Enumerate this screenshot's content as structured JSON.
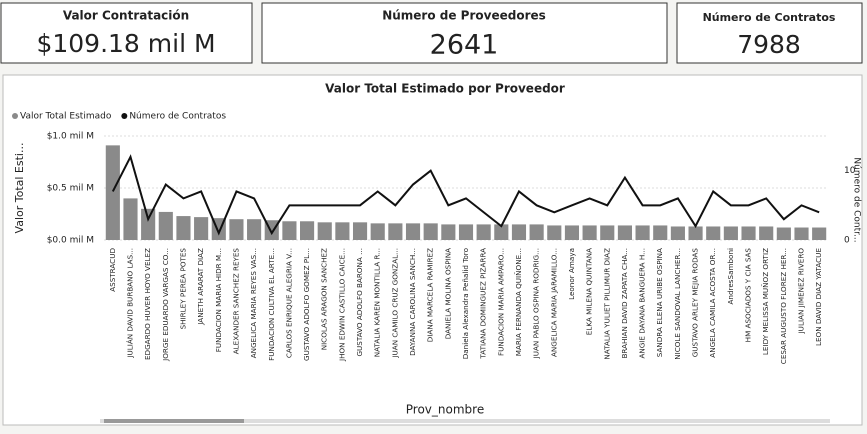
{
  "cards": [
    {
      "title": "Valor Contratación",
      "value": "$109.18 mil M"
    },
    {
      "title": "Número de Proveedores",
      "value": 2641
    },
    {
      "title": "Número de Contratos",
      "value": 7988
    }
  ],
  "chart_data": {
    "type": "bar_line",
    "title": "Valor Total Estimado por Proveedor",
    "x_label": "Prov_nombre",
    "y_label": "Valor Total Esti...",
    "y2_label": "Número de Contr...",
    "categories": [
      "ASSTRACUD",
      "JULIÁN DAVID BURBANO LAS...",
      "EDGARDO HUVER HOYO VELEZ",
      "JORGE EDUARDO VARGAS CO...",
      "SHIRLEY PEREA POTES",
      "JANETH ARARAT DIAZ",
      "FUNDACION MARIA HIDR M...",
      "ALEXANDER SANCHEZ REYES",
      "ANGELICA MARIA REYES VAS...",
      "FUNDACION CULTIVA EL ARTE...",
      "CARLOS ENRIQUE ALEGRIA V...",
      "GUSTAVO ADOLFO GOMEZ PL...",
      "NICOLAS ARAGON SANCHEZ",
      "JHON EDWIN CASTILLO CAICE...",
      "GUSTAVO ADOLFO BARONA ...",
      "NATALIA KAREN MONTILLA R...",
      "JUAN CAMILO CRUZ GONZAL...",
      "DAYANNA CAROLINA SANCH...",
      "DIANA MARCELA RAMIREZ",
      "DANIELA MOLINA OSPINA",
      "Daniela Alexandra Peñalid Toro",
      "TATIANA DOMINGUEZ PIZARRA",
      "FUNDACION MARIA AMPARO...",
      "MARIA FERNANDA QUIÑONE...",
      "JUAN PABLO OSPINA RODRIG...",
      "ANGELICA MARIA JARAMILLO...",
      "Leonor Amaya",
      "ELKA MILENA QUINTANA",
      "NATALIA YULIET PILLIMUR DIAZ",
      "BRAHIAN DAVID ZAPATA CHA...",
      "ANGIE DAYANA BANGUERA H...",
      "SANDRA ELENA URIBE OSPINA",
      "NICOLE SANDOVAL LANCHER...",
      "GUSTAVO ARLEY MEJIA RODAS",
      "ANGELA CAMILA ACOSTA OR...",
      "AndresSamboni",
      "HM ASOCIADOS Y CIA SAS",
      "LEIDY MELISSA MUÑOZ ORTIZ",
      "CESAR AUGUSTO FLOREZ HER...",
      "JULIAN JIMENEZ RIVERO",
      "LEON DAVID DIAZ YATACUE"
    ],
    "series": [
      {
        "name": "Valor Total Estimado",
        "color": "#8a8a8a",
        "values": [
          0.91,
          0.4,
          0.3,
          0.27,
          0.23,
          0.22,
          0.21,
          0.2,
          0.2,
          0.19,
          0.18,
          0.18,
          0.17,
          0.17,
          0.17,
          0.16,
          0.16,
          0.16,
          0.16,
          0.15,
          0.15,
          0.15,
          0.15,
          0.15,
          0.15,
          0.14,
          0.14,
          0.14,
          0.14,
          0.14,
          0.14,
          0.14,
          0.13,
          0.13,
          0.13,
          0.13,
          0.13,
          0.13,
          0.12,
          0.12,
          0.12
        ]
      },
      {
        "name": "Número de Contratos",
        "color": "#111111",
        "axis": "y2",
        "values": [
          7,
          12,
          3,
          8,
          6,
          7,
          1,
          7,
          6,
          1,
          5,
          5,
          5,
          5,
          5,
          7,
          5,
          8,
          10,
          5,
          6,
          4,
          2,
          7,
          5,
          4,
          5,
          6,
          5,
          9,
          5,
          5,
          6,
          2,
          7,
          5,
          5,
          6,
          3,
          5,
          4
        ]
      }
    ],
    "ylim": [
      0,
      1
    ],
    "yticks": [
      {
        "value": 0,
        "label": "$0.0 mil M"
      },
      {
        "value": 0.5,
        "label": "$0.5 mil M"
      },
      {
        "value": 1,
        "label": "$1.0 mil M"
      }
    ],
    "y2lim": [
      0,
      15
    ],
    "y2ticks": [
      0,
      10
    ],
    "grid": true
  }
}
